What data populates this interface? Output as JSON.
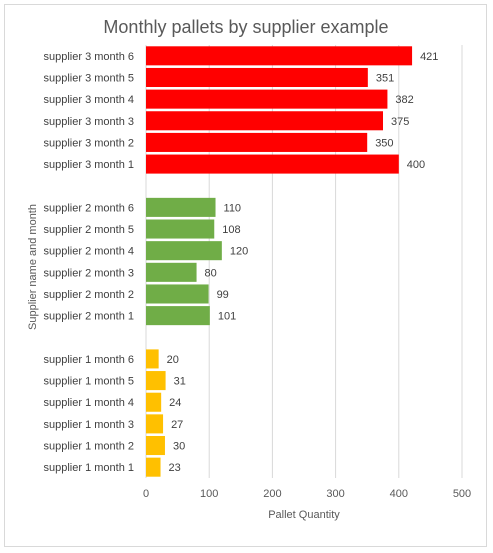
{
  "chart_data": {
    "type": "bar",
    "orientation": "horizontal",
    "title": "Monthly pallets by supplier example",
    "xlabel": "Pallet Quantity",
    "ylabel": "Supplier name and month",
    "xlim": [
      0,
      500
    ],
    "xticks": [
      "0",
      "100",
      "200",
      "300",
      "400",
      "500"
    ],
    "grid": true,
    "legend": "none",
    "groups": [
      {
        "color": "#ff0000",
        "categories": [
          "supplier 3 month 6",
          "supplier 3 month 5",
          "supplier 3 month 4",
          "supplier 3 month 3",
          "supplier 3 month 2",
          "supplier 3 month 1"
        ],
        "values": [
          421,
          351,
          382,
          375,
          350,
          400
        ]
      },
      {
        "color": "#70ad47",
        "categories": [
          "supplier 2 month 6",
          "supplier 2 month 5",
          "supplier 2 month 4",
          "supplier 2 month 3",
          "supplier 2 month 2",
          "supplier 2 month 1"
        ],
        "values": [
          110,
          108,
          120,
          80,
          99,
          101
        ]
      },
      {
        "color": "#ffc000",
        "categories": [
          "supplier 1 month 6",
          "supplier 1 month 5",
          "supplier 1 month 4",
          "supplier 1 month 3",
          "supplier 1 month 2",
          "supplier 1 month 1"
        ],
        "values": [
          20,
          31,
          24,
          27,
          30,
          23
        ]
      }
    ]
  }
}
